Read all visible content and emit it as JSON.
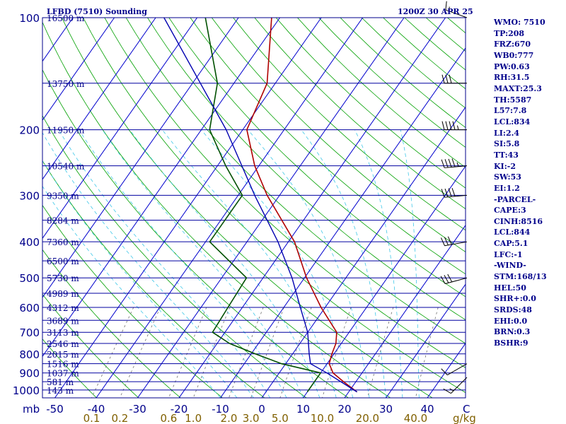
{
  "header": {
    "station": "LFBD (7510) Sounding",
    "time": "1200Z 30 APR 25"
  },
  "stats": [
    "WMO: 7510",
    "TP:208",
    "FRZ:670",
    "WB0:777",
    "PW:0.63",
    "RH:31.5",
    "MAXT:25.3",
    "TH:5587",
    "L57:7.8",
    "LCL:834",
    "LI:2.4",
    "SI:5.8",
    "TT:43",
    "KI:-2",
    "SW:53",
    "EI:1.2",
    "-PARCEL-",
    "CAPE:3",
    "CINH:8516",
    "LCL:844",
    "CAP:5.1",
    "LFC:-1",
    "-WIND-",
    "STM:168/13",
    "HEL:50",
    "SHR+:0.0",
    "SRDS:48",
    "EHI:0.0",
    "BRN:0.3",
    "BSHR:9"
  ],
  "chart_data": {
    "type": "line",
    "title": "LFBD (7510) Sounding",
    "subtitle": "1200Z 30 APR 25",
    "colors": {
      "frame": "#00008b",
      "isobar": "#0000a0",
      "isotherm": "#0000cd",
      "dry_adiabat": "#00a000",
      "moist_adiabat": "#40c8e8",
      "mixing_ratio": "#707070",
      "temperature": "#b00000",
      "dewpoint": "#005000",
      "parcel": "#0000b0"
    },
    "pressure_axis": {
      "unit_label": "mb",
      "ticks": [
        100,
        200,
        300,
        400,
        500,
        600,
        700,
        800,
        900,
        1000
      ]
    },
    "temperature_axis": {
      "unit_label": "C",
      "ticks": [
        -50,
        -40,
        -30,
        -20,
        -10,
        0,
        10,
        20,
        30,
        40
      ]
    },
    "mixing_ratio_axis": {
      "unit_label": "g/kg",
      "ticks": [
        "0.1",
        "0.2",
        "0.6",
        "1.0",
        "2.0",
        "3.0",
        "5.0",
        "10.0",
        "20.0",
        "40.0"
      ]
    },
    "heights": [
      {
        "label": "16500 m",
        "p": 100
      },
      {
        "label": "13750 m",
        "p": 150
      },
      {
        "label": "11950 m",
        "p": 200
      },
      {
        "label": "10540 m",
        "p": 250
      },
      {
        "label": "9350 m",
        "p": 300
      },
      {
        "label": "8284 m",
        "p": 350
      },
      {
        "label": "7360 m",
        "p": 400
      },
      {
        "label": "6500 m",
        "p": 450
      },
      {
        "label": "5730 m",
        "p": 500
      },
      {
        "label": "4989 m",
        "p": 550
      },
      {
        "label": "4312 m",
        "p": 600
      },
      {
        "label": "3689 m",
        "p": 650
      },
      {
        "label": "3113 m",
        "p": 700
      },
      {
        "label": "2546 m",
        "p": 750
      },
      {
        "label": "2015 m",
        "p": 800
      },
      {
        "label": "1516 m",
        "p": 850
      },
      {
        "label": "1037 m",
        "p": 900
      },
      {
        "label": "581 m",
        "p": 950
      },
      {
        "label": "143 m",
        "p": 1000
      }
    ],
    "series": [
      {
        "key": "temperature",
        "points": [
          [
            1012,
            22
          ],
          [
            950,
            17
          ],
          [
            900,
            13
          ],
          [
            850,
            10.5
          ],
          [
            800,
            9.5
          ],
          [
            750,
            8.7
          ],
          [
            700,
            7
          ],
          [
            600,
            -1
          ],
          [
            500,
            -9.5
          ],
          [
            400,
            -18.5
          ],
          [
            300,
            -33
          ],
          [
            250,
            -41
          ],
          [
            200,
            -49
          ],
          [
            150,
            -52
          ],
          [
            100,
            -62
          ]
        ]
      },
      {
        "key": "dewpoint",
        "points": [
          [
            1012,
            10
          ],
          [
            950,
            10
          ],
          [
            900,
            10
          ],
          [
            850,
            -1
          ],
          [
            800,
            -9
          ],
          [
            750,
            -17
          ],
          [
            700,
            -23
          ],
          [
            600,
            -23.5
          ],
          [
            500,
            -24
          ],
          [
            400,
            -39
          ],
          [
            300,
            -39
          ],
          [
            250,
            -48
          ],
          [
            200,
            -58
          ],
          [
            150,
            -64
          ],
          [
            100,
            -78
          ]
        ]
      },
      {
        "key": "parcel",
        "points": [
          [
            1012,
            22
          ],
          [
            900,
            11.5
          ],
          [
            850,
            6
          ],
          [
            800,
            4
          ],
          [
            700,
            0
          ],
          [
            600,
            -6
          ],
          [
            500,
            -13
          ],
          [
            400,
            -22.5
          ],
          [
            300,
            -36
          ],
          [
            200,
            -54
          ],
          [
            100,
            -88
          ]
        ]
      }
    ],
    "winds": [
      {
        "p": 925,
        "dir": 225,
        "speed_kt": 15
      },
      {
        "p": 850,
        "dir": 240,
        "speed_kt": 10
      },
      {
        "p": 500,
        "dir": 255,
        "speed_kt": 30
      },
      {
        "p": 400,
        "dir": 260,
        "speed_kt": 30
      },
      {
        "p": 300,
        "dir": 265,
        "speed_kt": 40
      },
      {
        "p": 250,
        "dir": 265,
        "speed_kt": 45
      },
      {
        "p": 200,
        "dir": 270,
        "speed_kt": 45
      },
      {
        "p": 150,
        "dir": 270,
        "speed_kt": 30
      },
      {
        "p": 100,
        "dir": 290,
        "speed_kt": 15
      }
    ]
  }
}
